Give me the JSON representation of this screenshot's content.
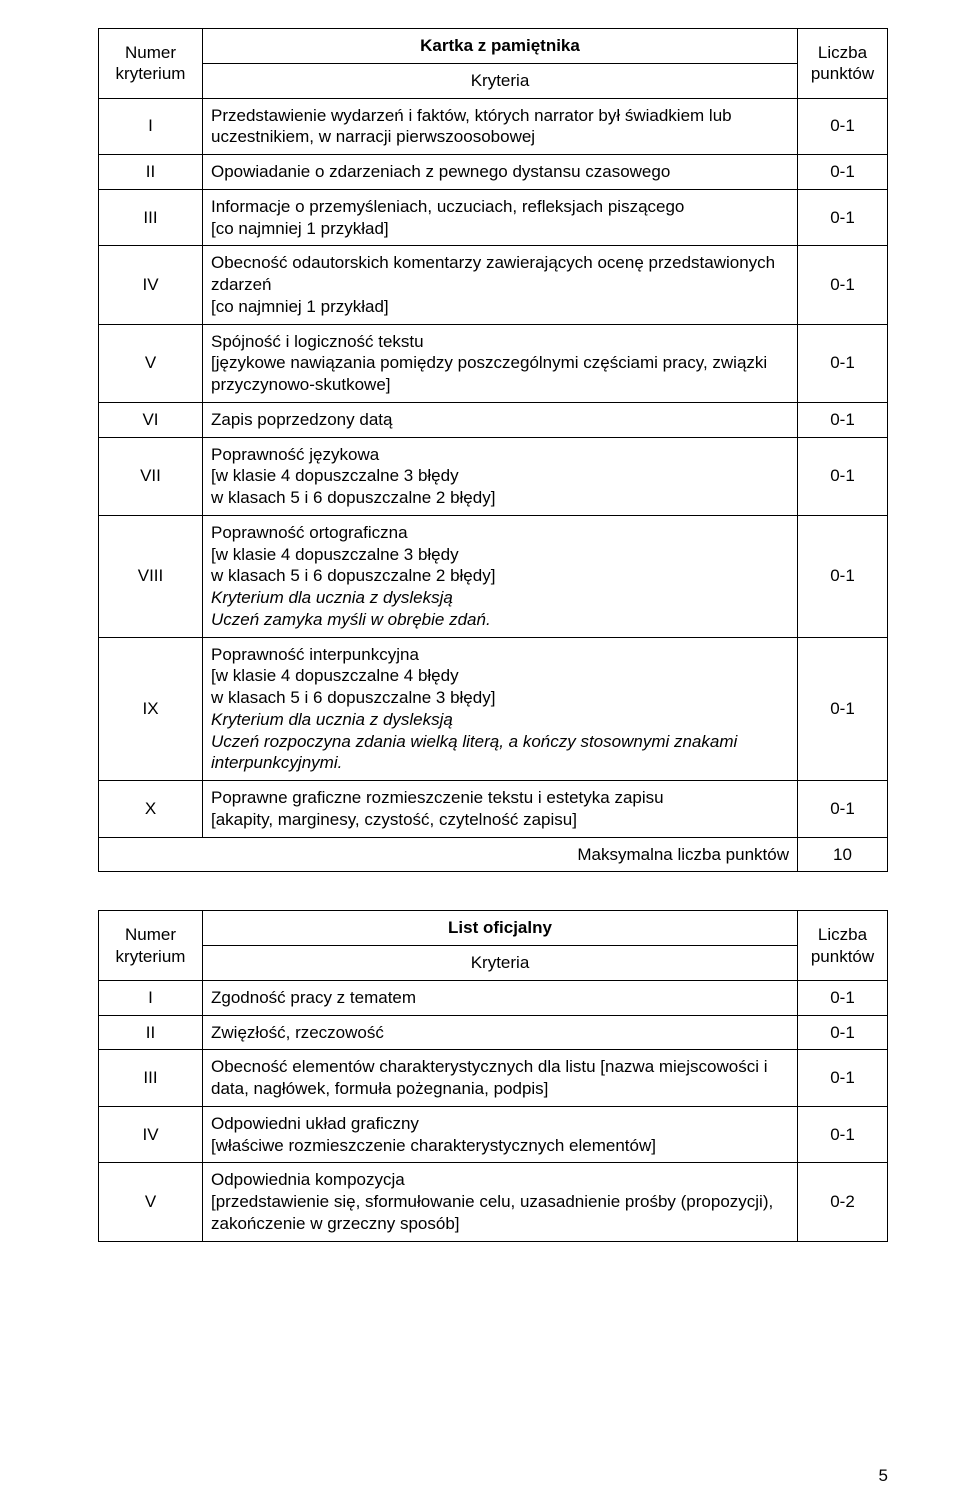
{
  "page_number": "5",
  "tables": {
    "t1": {
      "title": "Kartka z pamiętnika",
      "head": {
        "col_num": "Numer\nkryterium",
        "col_crit": "Kryteria",
        "col_pts": "Liczba\npunktów"
      },
      "rows": [
        {
          "num": "I",
          "crit": "Przedstawienie wydarzeń i faktów, których narrator był świadkiem lub uczestnikiem, w narracji pierwszoosobowej",
          "pts": "0-1"
        },
        {
          "num": "II",
          "crit": "Opowiadanie o zdarzeniach z pewnego dystansu czasowego",
          "pts": "0-1"
        },
        {
          "num": "III",
          "crit": "Informacje o przemyśleniach, uczuciach, refleksjach piszącego\n[co najmniej 1 przykład]",
          "pts": "0-1"
        },
        {
          "num": "IV",
          "crit": "Obecność odautorskich komentarzy zawierających ocenę przedstawionych zdarzeń\n[co najmniej 1 przykład]",
          "pts": "0-1"
        },
        {
          "num": "V",
          "crit": "Spójność i logiczność tekstu\n[językowe nawiązania pomiędzy poszczególnymi częściami pracy, związki przyczynowo-skutkowe]",
          "pts": "0-1"
        },
        {
          "num": "VI",
          "crit": "Zapis poprzedzony datą",
          "pts": "0-1"
        },
        {
          "num": "VII",
          "crit": "Poprawność językowa\n[w klasie 4 dopuszczalne 3 błędy\nw klasach 5 i 6 dopuszczalne 2 błędy]",
          "pts": "0-1"
        },
        {
          "num": "VIII",
          "crit_plain": "Poprawność ortograficzna\n[w klasie 4 dopuszczalne 3 błędy\nw klasach 5 i 6 dopuszczalne 2 błędy]",
          "crit_italic": "Kryterium dla ucznia z dysleksją\nUczeń zamyka myśli w obrębie zdań.",
          "pts": "0-1"
        },
        {
          "num": "IX",
          "crit_plain": "Poprawność interpunkcyjna\n[w klasie 4 dopuszczalne 4 błędy\nw klasach 5 i 6 dopuszczalne 3 błędy]",
          "crit_italic": "Kryterium dla ucznia z dysleksją\nUczeń rozpoczyna zdania wielką literą, a kończy stosownymi znakami interpunkcyjnymi.",
          "pts": "0-1"
        },
        {
          "num": "X",
          "crit": "Poprawne graficzne rozmieszczenie tekstu i estetyka zapisu\n[akapity, marginesy, czystość, czytelność zapisu]",
          "pts": "0-1"
        }
      ],
      "max_label": "Maksymalna liczba punktów",
      "max_points": "10"
    },
    "t2": {
      "title": "List oficjalny",
      "head": {
        "col_num": "Numer\nkryterium",
        "col_crit": "Kryteria",
        "col_pts": "Liczba\npunktów"
      },
      "rows": [
        {
          "num": "I",
          "crit": "Zgodność pracy z tematem",
          "pts": "0-1"
        },
        {
          "num": "II",
          "crit": "Zwięzłość, rzeczowość",
          "pts": "0-1"
        },
        {
          "num": "III",
          "crit": "Obecność elementów charakterystycznych dla listu [nazwa miejscowości i data, nagłówek, formuła pożegnania, podpis]",
          "pts": "0-1"
        },
        {
          "num": "IV",
          "crit": "Odpowiedni układ graficzny\n[właściwe rozmieszczenie charakterystycznych elementów]",
          "pts": "0-1"
        },
        {
          "num": "V",
          "crit": "Odpowiednia kompozycja\n[przedstawienie się, sformułowanie celu, uzasadnienie prośby (propozycji), zakończenie w grzeczny sposób]",
          "pts": "0-2"
        }
      ]
    }
  }
}
